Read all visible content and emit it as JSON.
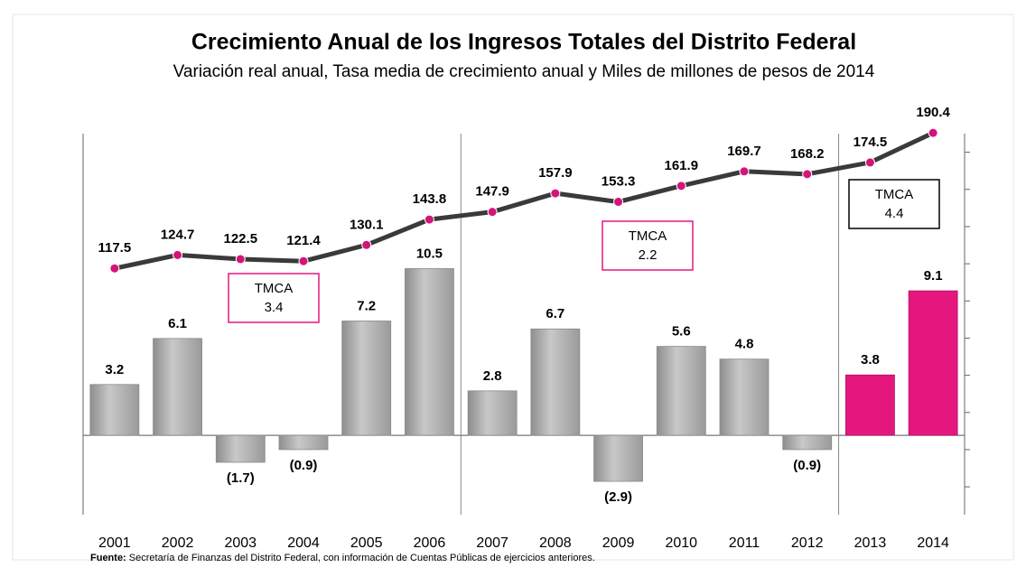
{
  "chart_data": {
    "type": "bar_line",
    "title": "Crecimiento Anual de los Ingresos Totales del Distrito Federal",
    "subtitle": "Variación real anual, Tasa media de crecimiento anual y Miles de millones de pesos de 2014",
    "categories": [
      "2001",
      "2002",
      "2003",
      "2004",
      "2005",
      "2006",
      "2007",
      "2008",
      "2009",
      "2010",
      "2011",
      "2012",
      "2013",
      "2014"
    ],
    "series": [
      {
        "type": "bar",
        "colors": [
          "#b3b3b3",
          "#b3b3b3",
          "#b3b3b3",
          "#b3b3b3",
          "#b3b3b3",
          "#b3b3b3",
          "#b3b3b3",
          "#b3b3b3",
          "#b3b3b3",
          "#b3b3b3",
          "#b3b3b3",
          "#b3b3b3",
          "#e5177e",
          "#e5177e"
        ],
        "values": [
          3.2,
          6.1,
          -1.7,
          -0.9,
          7.2,
          10.5,
          2.8,
          6.7,
          -2.9,
          5.6,
          4.8,
          -0.9,
          3.8,
          9.1
        ],
        "value_labels": [
          "3.2",
          "6.1",
          "(1.7)",
          "(0.9)",
          "7.2",
          "10.5",
          "2.8",
          "6.7",
          "(2.9)",
          "5.6",
          "4.8",
          "(0.9)",
          "3.8",
          "9.1"
        ]
      },
      {
        "type": "line",
        "axis": "y2",
        "color": "#3a3a3a",
        "marker_color": "#d4147a",
        "values": [
          117.5,
          124.7,
          122.5,
          121.4,
          130.1,
          143.8,
          147.9,
          157.9,
          153.3,
          161.9,
          169.7,
          168.2,
          174.5,
          190.4
        ]
      }
    ],
    "ylim": [
      -5,
      19
    ],
    "y2lim": [
      -15,
      190
    ],
    "y2ticks": [
      0,
      20,
      40,
      60,
      80,
      100,
      120,
      140,
      160,
      180
    ],
    "annotations": [
      {
        "label": "TMCA",
        "value": "3.4",
        "color": "#e5177e"
      },
      {
        "label": "TMCA",
        "value": "2.2",
        "color": "#e5177e"
      },
      {
        "label": "TMCA",
        "value": "4.4",
        "color": "#000000"
      }
    ],
    "source": {
      "label": "Fuente:",
      "text": "Secretaría de Finanzas del Distrito Federal, con información de Cuentas Públicas de ejercicios anteriores."
    }
  }
}
